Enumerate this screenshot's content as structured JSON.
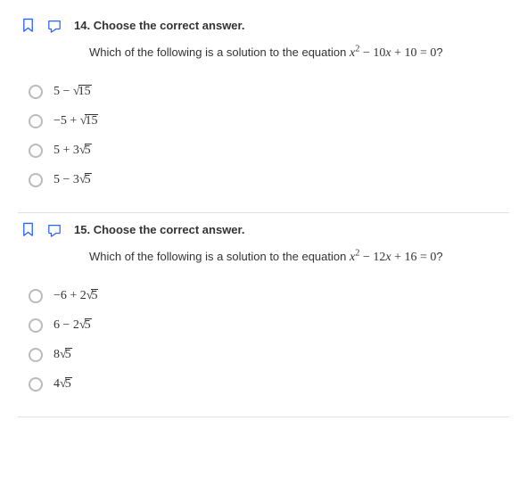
{
  "colors": {
    "bookmark_stroke": "#2962ff",
    "note_stroke": "#2962ff",
    "radio_border": "#bbbbbb",
    "text": "#333333",
    "divider": "#e0e0e0"
  },
  "questions": [
    {
      "number": "14.",
      "instruction": "Choose the correct answer.",
      "prompt_prefix": "Which of the following is a solution to the equation ",
      "equation": {
        "a": 1,
        "b": -10,
        "c": 10
      },
      "equation_tex": "x^2 - 10x + 10 = 0",
      "prompt_suffix": "?",
      "options": [
        {
          "lead": "5",
          "op": "−",
          "coef": "",
          "radicand": "15"
        },
        {
          "lead": "−5",
          "op": "+",
          "coef": "",
          "radicand": "15"
        },
        {
          "lead": "5",
          "op": "+",
          "coef": "3",
          "radicand": "5"
        },
        {
          "lead": "5",
          "op": "−",
          "coef": "3",
          "radicand": "5"
        }
      ]
    },
    {
      "number": "15.",
      "instruction": "Choose the correct answer.",
      "prompt_prefix": "Which of the following is a solution to the equation ",
      "equation": {
        "a": 1,
        "b": -12,
        "c": 16
      },
      "equation_tex": "x^2 - 12x + 16 = 0",
      "prompt_suffix": "?",
      "options": [
        {
          "lead": "−6",
          "op": "+",
          "coef": "2",
          "radicand": "5"
        },
        {
          "lead": "6",
          "op": "−",
          "coef": "2",
          "radicand": "5"
        },
        {
          "lead": "",
          "op": "",
          "coef": "8",
          "radicand": "5"
        },
        {
          "lead": "",
          "op": "",
          "coef": "4",
          "radicand": "5"
        }
      ]
    }
  ]
}
